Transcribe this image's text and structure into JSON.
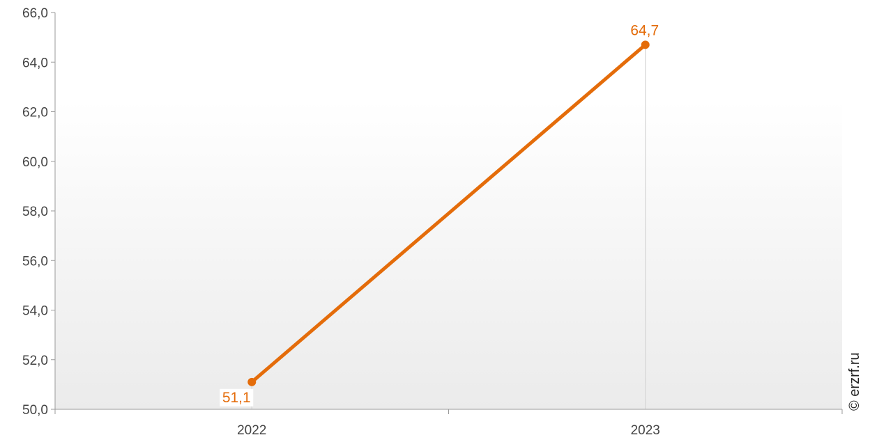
{
  "chart_data": {
    "type": "line",
    "categories": [
      "2022",
      "2023"
    ],
    "series": [
      {
        "values": [
          51.1,
          64.7
        ],
        "labels": [
          "51,1",
          "64,7"
        ]
      }
    ],
    "ylim": [
      50,
      66
    ],
    "yticks": [
      50,
      52,
      54,
      56,
      58,
      60,
      62,
      64,
      66
    ],
    "ytick_labels": [
      "50,0",
      "52,0",
      "54,0",
      "56,0",
      "58,0",
      "60,0",
      "62,0",
      "64,0",
      "66,0"
    ],
    "grid": "vertical drop lines at data points",
    "line_color": "#E46C0A",
    "background": "gradient white to light gray"
  },
  "watermark": "© erzrf.ru"
}
